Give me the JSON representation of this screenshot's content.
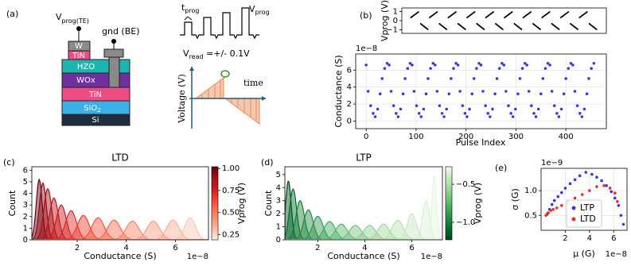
{
  "panel_a": {
    "label": "(a)",
    "te": {
      "main": "V",
      "sub": "prog(TE)"
    },
    "be": "gnd (BE)",
    "layers": [
      "W",
      "TiN",
      "HZO",
      "WOx",
      "TiN",
      {
        "main": "SiO",
        "sub": "2"
      },
      "Si"
    ],
    "waveform": {
      "t": {
        "main": "t",
        "sub": "prog"
      },
      "v": {
        "main": "V",
        "sub": "prog"
      },
      "read": {
        "main": "V",
        "sub": "read",
        "tail": " =+/- 0.1V"
      }
    },
    "axis": {
      "y": "Voltage (V)",
      "x": "time"
    }
  },
  "chart_data": [
    {
      "type": "line",
      "panel_label": "(b)",
      "ylabel": "Vprog (V)",
      "xlim": [
        -21,
        481
      ],
      "ylim": [
        -1.4,
        1.4
      ],
      "yticks": [
        1,
        0,
        {
          "value": -1,
          "label": "−1"
        }
      ],
      "series": [
        {
          "color": "#000000",
          "x": [
            0,
            21,
            22,
            24,
            44,
            45,
            46,
            67,
            68,
            70,
            90,
            91,
            92,
            113,
            114,
            116,
            136,
            137,
            138,
            159,
            160,
            162,
            182,
            183,
            184,
            205,
            206,
            208,
            228,
            229,
            230,
            251,
            252,
            254,
            274,
            275,
            276,
            297,
            298,
            300,
            320,
            321,
            322,
            343,
            344,
            346,
            366,
            367,
            368,
            389,
            390,
            392,
            412,
            413,
            414,
            435,
            436,
            438,
            458,
            459
          ],
          "values": [
            0.3,
            1,
            null,
            -0.3,
            -1,
            null,
            0.3,
            1,
            null,
            -0.3,
            -1,
            null,
            0.3,
            1,
            null,
            -0.3,
            -1,
            null,
            0.3,
            1,
            null,
            -0.3,
            -1,
            null,
            0.3,
            1,
            null,
            -0.3,
            -1,
            null,
            0.3,
            1,
            null,
            -0.3,
            -1,
            null,
            0.3,
            1,
            null,
            -0.3,
            -1,
            null,
            0.3,
            1,
            null,
            -0.3,
            -1,
            null,
            0.3,
            1,
            null,
            -0.3,
            -1,
            null,
            0.3,
            1,
            null,
            -0.3,
            -1,
            null
          ]
        }
      ]
    },
    {
      "type": "scatter",
      "xlabel": "Pulse Index",
      "ylabel": "Conductance (S)",
      "y_offset": "1e−8",
      "grid": true,
      "xlim": [
        -21,
        481
      ],
      "ylim": [
        -0.9,
        7.9
      ],
      "xticks": [
        0,
        100,
        200,
        300,
        400
      ],
      "yticks": [
        0,
        2,
        4,
        6
      ],
      "series": [
        {
          "color": "#3a3adf",
          "x": [
            0,
            4,
            9,
            14,
            18,
            23,
            28,
            32,
            37,
            42,
            46,
            50,
            55,
            60,
            64,
            69,
            74,
            78,
            83,
            88,
            92,
            96,
            101,
            106,
            110,
            115,
            120,
            124,
            129,
            134,
            138,
            142,
            147,
            152,
            156,
            161,
            166,
            170,
            175,
            180,
            184,
            188,
            193,
            198,
            202,
            207,
            212,
            216,
            221,
            226,
            230,
            234,
            239,
            244,
            248,
            253,
            258,
            262,
            267,
            272,
            276,
            280,
            285,
            290,
            294,
            299,
            304,
            308,
            313,
            318,
            322,
            326,
            331,
            336,
            340,
            345,
            350,
            354,
            359,
            364,
            368,
            372,
            377,
            382,
            386,
            391,
            396,
            400,
            405,
            410,
            414,
            418,
            423,
            428,
            432,
            437,
            442,
            446,
            451,
            456
          ],
          "values": [
            6.6,
            3.5,
            1.8,
            0.9,
            0.5,
            1.4,
            3.2,
            5.0,
            6.2,
            6.8,
            6.6,
            3.5,
            1.8,
            0.9,
            0.5,
            1.4,
            3.2,
            5.0,
            6.2,
            6.8,
            6.6,
            3.5,
            1.8,
            0.9,
            0.5,
            1.4,
            3.2,
            5.0,
            6.2,
            6.8,
            6.6,
            3.5,
            1.8,
            0.9,
            0.5,
            1.4,
            3.2,
            5.0,
            6.2,
            6.8,
            6.6,
            3.5,
            1.8,
            0.9,
            0.5,
            1.4,
            3.2,
            5.0,
            6.2,
            6.8,
            6.6,
            3.5,
            1.8,
            0.9,
            0.5,
            1.4,
            3.2,
            5.0,
            6.2,
            6.8,
            6.6,
            3.5,
            1.8,
            0.9,
            0.5,
            1.4,
            3.2,
            5.0,
            6.2,
            6.8,
            6.6,
            3.5,
            1.8,
            0.9,
            0.5,
            1.4,
            3.2,
            5.0,
            6.2,
            6.8,
            6.6,
            3.5,
            1.8,
            0.9,
            0.5,
            1.4,
            3.2,
            5.0,
            6.2,
            6.8,
            6.6,
            3.5,
            1.8,
            0.9,
            0.5,
            1.4,
            3.2,
            5.0,
            6.2,
            6.8
          ]
        }
      ]
    },
    {
      "type": "density",
      "panel_label": "(c)",
      "title": "LTD",
      "xlabel": "Conductance (S)",
      "ylabel": "Count",
      "x_offset": "1e−8",
      "xlim": [
        0.15,
        7.35
      ],
      "ylim": [
        0,
        6.3
      ],
      "xticks": [
        2,
        4,
        6
      ],
      "yticks": [
        0,
        1,
        2,
        3,
        4,
        5,
        6
      ],
      "colorbar": {
        "label": "Vprog (V)",
        "lim": [
          0.19,
          1.02
        ],
        "ticks": [
          0.25,
          {
            "value": 0.5,
            "label": "0.50"
          },
          0.75,
          {
            "value": 1,
            "label": "1.00"
          }
        ],
        "colors": [
          "#fff5f0",
          "#fcbba1",
          "#fc9272",
          "#fb6a4a",
          "#ef3b2c",
          "#cb181d",
          "#a50f15",
          "#67000d"
        ]
      },
      "series": [
        {
          "color": "#67000d",
          "mean": 0.45,
          "std": 0.12,
          "peak": 5.2
        },
        {
          "color": "#8b0a14",
          "mean": 0.6,
          "std": 0.14,
          "peak": 4.9
        },
        {
          "color": "#a50f15",
          "mean": 0.8,
          "std": 0.16,
          "peak": 4.4
        },
        {
          "color": "#bb151a",
          "mean": 1.05,
          "std": 0.18,
          "peak": 3.6
        },
        {
          "color": "#cb181d",
          "mean": 1.35,
          "std": 0.2,
          "peak": 3.0
        },
        {
          "color": "#dd2a25",
          "mean": 1.75,
          "std": 0.22,
          "peak": 2.5
        },
        {
          "color": "#ef3b2c",
          "mean": 2.25,
          "std": 0.24,
          "peak": 2.1
        },
        {
          "color": "#f5553d",
          "mean": 2.85,
          "std": 0.25,
          "peak": 1.9
        },
        {
          "color": "#fb6a4a",
          "mean": 3.5,
          "std": 0.26,
          "peak": 1.7
        },
        {
          "color": "#fc8161",
          "mean": 4.25,
          "std": 0.26,
          "peak": 1.6
        },
        {
          "color": "#fc9879",
          "mean": 5.1,
          "std": 0.26,
          "peak": 1.6
        },
        {
          "color": "#fcae91",
          "mean": 5.9,
          "std": 0.25,
          "peak": 1.7
        },
        {
          "color": "#fdc5ad",
          "mean": 6.6,
          "std": 0.22,
          "peak": 1.9
        }
      ]
    },
    {
      "type": "density",
      "panel_label": "(d)",
      "title": "LTP",
      "xlabel": "Conductance (S)",
      "ylabel": "Count",
      "x_offset": "1e−8",
      "xlim": [
        0.6,
        7.3
      ],
      "ylim": [
        0,
        5.6
      ],
      "xticks": [
        2,
        4,
        6
      ],
      "yticks": [
        0,
        1,
        2,
        3,
        4,
        5
      ],
      "colorbar": {
        "label": "Vprog (V)",
        "lim": [
          -1.23,
          -0.27
        ],
        "ticks": [
          {
            "value": -0.5,
            "label": "−0.5"
          },
          {
            "value": -1,
            "label": "−1.0"
          }
        ],
        "colors": [
          "#00441b",
          "#006d2c",
          "#238b45",
          "#41ab5d",
          "#74c476",
          "#a1d99b",
          "#c7e9c0",
          "#f7fcf5"
        ]
      },
      "series": [
        {
          "color": "#00441b",
          "mean": 0.75,
          "std": 0.12,
          "peak": 4.5
        },
        {
          "color": "#006d2c",
          "mean": 0.95,
          "std": 0.15,
          "peak": 3.9
        },
        {
          "color": "#187f3a",
          "mean": 1.25,
          "std": 0.18,
          "peak": 3.0
        },
        {
          "color": "#238b45",
          "mean": 1.6,
          "std": 0.2,
          "peak": 2.3
        },
        {
          "color": "#2f974e",
          "mean": 2.0,
          "std": 0.22,
          "peak": 1.8
        },
        {
          "color": "#41ab5d",
          "mean": 2.5,
          "std": 0.24,
          "peak": 1.4
        },
        {
          "color": "#5bb86a",
          "mean": 3.0,
          "std": 0.25,
          "peak": 1.2
        },
        {
          "color": "#74c476",
          "mean": 3.6,
          "std": 0.26,
          "peak": 1.1
        },
        {
          "color": "#8ed08b",
          "mean": 4.2,
          "std": 0.26,
          "peak": 1.1
        },
        {
          "color": "#a1d99b",
          "mean": 4.8,
          "std": 0.25,
          "peak": 1.2
        },
        {
          "color": "#b5e2af",
          "mean": 5.4,
          "std": 0.24,
          "peak": 1.5
        },
        {
          "color": "#c7e9c0",
          "mean": 6.0,
          "std": 0.2,
          "peak": 2.0
        },
        {
          "color": "#d9f0d3",
          "mean": 6.6,
          "std": 0.15,
          "peak": 3.0
        },
        {
          "color": "#e5f5e0",
          "mean": 6.95,
          "std": 0.1,
          "peak": 4.9
        }
      ]
    },
    {
      "type": "scatter",
      "panel_label": "(e)",
      "xlabel": "μ (G)",
      "ylabel": "σ (G)",
      "x_offset": "1e−8",
      "y_offset": "1e−9",
      "grid": true,
      "legend": "lower center",
      "xlim": [
        0,
        7.1
      ],
      "ylim": [
        0.2,
        1.45
      ],
      "xticks": [
        2,
        4,
        6
      ],
      "yticks": [
        0.5,
        {
          "value": 1,
          "label": "1.0"
        }
      ],
      "series": [
        {
          "name": "LTP",
          "color": "#3535ee",
          "x": [
            0.55,
            0.7,
            0.9,
            1.1,
            1.4,
            1.7,
            2.0,
            2.4,
            2.8,
            3.2,
            3.7,
            4.2,
            4.6,
            5.0,
            5.4,
            5.8,
            6.1,
            6.4,
            6.6,
            6.8
          ],
          "values": [
            0.55,
            0.62,
            0.72,
            0.8,
            0.88,
            0.96,
            1.05,
            1.14,
            1.22,
            1.3,
            1.37,
            1.33,
            1.27,
            1.2,
            1.1,
            0.98,
            0.85,
            0.7,
            0.5,
            0.32
          ]
        },
        {
          "name": "LTD",
          "color": "#ee2a2a",
          "x": [
            0.4,
            0.5,
            0.6,
            0.8,
            1.0,
            1.3,
            1.7,
            2.2,
            2.8,
            3.4,
            4.0,
            4.6,
            5.2,
            5.7,
            6.1,
            6.3
          ],
          "values": [
            0.5,
            0.52,
            0.55,
            0.6,
            0.62,
            0.65,
            0.7,
            0.78,
            0.85,
            0.92,
            1.0,
            1.08,
            1.1,
            1.05,
            0.95,
            0.78
          ]
        }
      ]
    }
  ]
}
